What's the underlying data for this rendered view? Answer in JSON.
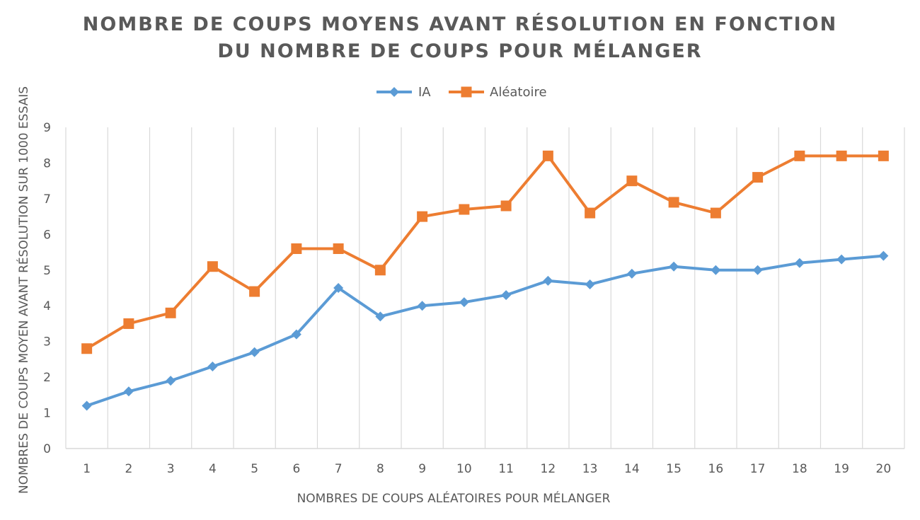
{
  "chart_data": {
    "type": "line",
    "title_line1": "NOMBRE DE COUPS MOYENS AVANT RÉSOLUTION EN FONCTION",
    "title_line2": "DU NOMBRE DE COUPS POUR MÉLANGER",
    "xlabel": "NOMBRES DE COUPS ALÉATOIRES POUR MÉLANGER",
    "ylabel": "NOMBRES DE COUPS MOYEN AVANT RÉSOLUTION SUR 1000 ESSAIS",
    "categories": [
      "1",
      "2",
      "3",
      "4",
      "5",
      "6",
      "7",
      "8",
      "9",
      "10",
      "11",
      "12",
      "13",
      "14",
      "15",
      "16",
      "17",
      "18",
      "19",
      "20"
    ],
    "yticks": [
      "0",
      "1",
      "2",
      "3",
      "4",
      "5",
      "6",
      "7",
      "8",
      "9"
    ],
    "ylim": [
      0,
      9
    ],
    "grid": "vertical",
    "legend_position": "top",
    "series": [
      {
        "name": "IA",
        "color": "#5B9BD5",
        "marker": "diamond",
        "values": [
          1.2,
          1.6,
          1.9,
          2.3,
          2.7,
          3.2,
          4.5,
          3.7,
          4.0,
          4.1,
          4.3,
          4.7,
          4.6,
          4.9,
          5.1,
          5.0,
          5.0,
          5.2,
          5.3,
          5.4
        ]
      },
      {
        "name": "Aléatoire",
        "color": "#ED7D31",
        "marker": "square",
        "values": [
          2.8,
          3.5,
          3.8,
          5.1,
          4.4,
          5.6,
          5.6,
          5.0,
          6.5,
          6.7,
          6.8,
          8.2,
          6.6,
          7.5,
          6.9,
          6.6,
          7.6,
          8.2,
          8.2,
          8.2
        ]
      }
    ]
  }
}
